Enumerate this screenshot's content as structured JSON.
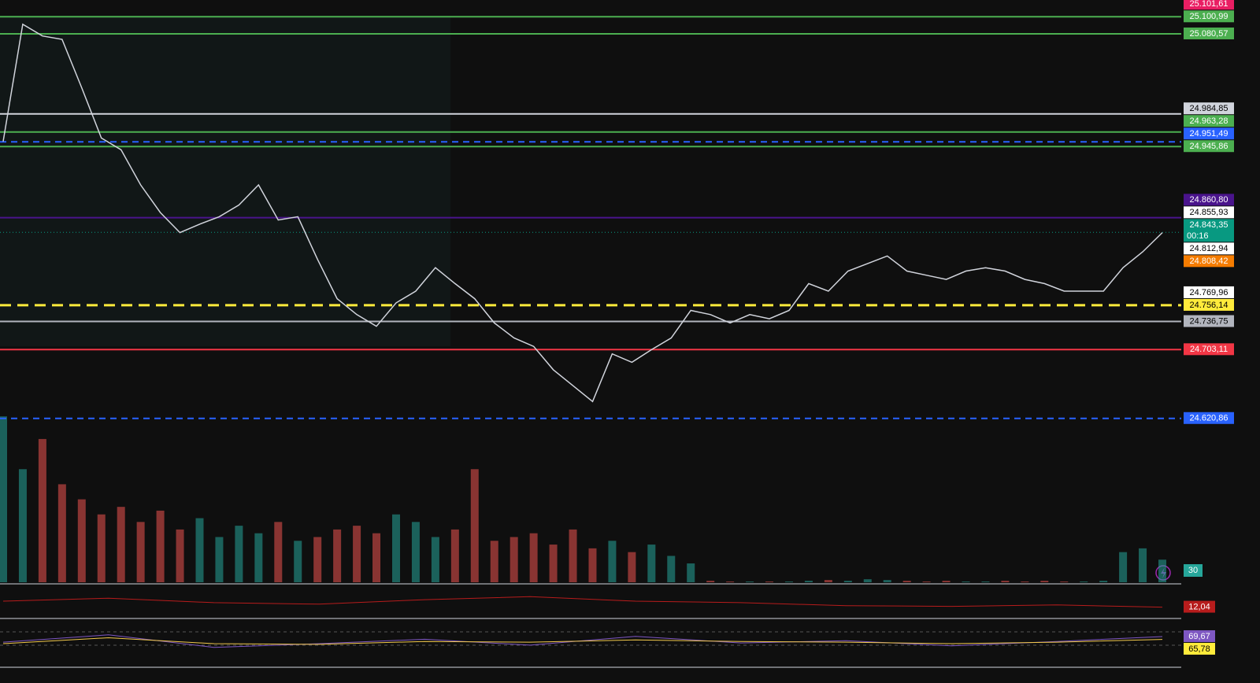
{
  "chart_data": {
    "type": "line",
    "ylim": [
      24425,
      25121
    ],
    "x": [
      0,
      1,
      2,
      3,
      4,
      5,
      6,
      7,
      8,
      9,
      10,
      11,
      12,
      13,
      14,
      15,
      16,
      17,
      18,
      19,
      20,
      21,
      22,
      23,
      24,
      25,
      26,
      27,
      28,
      29,
      30,
      31,
      32,
      33,
      34,
      35,
      36,
      37,
      38,
      39,
      40,
      41,
      42,
      43,
      44,
      45,
      46,
      47,
      48,
      49,
      50,
      51,
      52,
      53,
      54,
      55,
      56,
      57,
      58,
      59
    ],
    "xlim": [
      0,
      59
    ],
    "series": [
      {
        "color": "#d1d4dc",
        "values": [
          24952,
          25092,
          25078,
          25074,
          25016,
          24956,
          24942,
          24900,
          24867,
          24843,
          24853,
          24862,
          24876,
          24900,
          24858,
          24862,
          24811,
          24764,
          24745,
          24731,
          24759,
          24773,
          24801,
          24782,
          24764,
          24735,
          24717,
          24707,
          24679,
          24660,
          24641,
          24698,
          24688,
          24703,
          24717,
          24750,
          24745,
          24735,
          24745,
          24740,
          24750,
          24782,
          24773,
          24797,
          24806,
          24815,
          24797,
          24792,
          24787,
          24797,
          24801,
          24797,
          24787,
          24782,
          24773,
          24773,
          24773,
          24801,
          24820,
          24843
        ]
      }
    ],
    "levels": [
      {
        "value": 25101.61,
        "label": "25.101,61",
        "color": "#e91e63",
        "text_color": "#ffffff",
        "line": "none"
      },
      {
        "value": 25100.99,
        "label": "25.100,99",
        "color": "#4caf50",
        "text_color": "#ffffff",
        "line": "solid"
      },
      {
        "value": 25080.57,
        "label": "25.080,57",
        "color": "#4caf50",
        "text_color": "#ffffff",
        "line": "solid"
      },
      {
        "value": 24984.85,
        "label": "24.984,85",
        "color": "#d1d4dc",
        "text_color": "#000000",
        "line": "solid"
      },
      {
        "value": 24963.28,
        "label": "24.963,28",
        "color": "#4caf50",
        "text_color": "#ffffff",
        "line": "solid"
      },
      {
        "value": 24951.49,
        "label": "24.951,49",
        "color": "#2962ff",
        "text_color": "#ffffff",
        "line": "dashed"
      },
      {
        "value": 24945.86,
        "label": "24.945,86",
        "color": "#4caf50",
        "text_color": "#ffffff",
        "line": "solid"
      },
      {
        "value": 24860.8,
        "label": "24.860,80",
        "color": "#4a148c",
        "text_color": "#ffffff",
        "line": "solid"
      },
      {
        "value": 24855.93,
        "label": "24.855,93",
        "color": "#ffffff",
        "text_color": "#000000",
        "line": "none"
      },
      {
        "value": 24843.35,
        "label": "24.843,35",
        "color": "#089981",
        "text_color": "#ffffff",
        "line": "dotted",
        "countdown": "00:16"
      },
      {
        "value": 24812.94,
        "label": "24.812,94",
        "color": "#ffffff",
        "text_color": "#000000",
        "line": "none"
      },
      {
        "value": 24808.42,
        "label": "24.808,42",
        "color": "#f57c00",
        "text_color": "#ffffff",
        "line": "none"
      },
      {
        "value": 24769.96,
        "label": "24.769,96",
        "color": "#ffffff",
        "text_color": "#000000",
        "line": "none"
      },
      {
        "value": 24756.14,
        "label": "24.756,14",
        "color": "#ffeb3b",
        "text_color": "#000000",
        "line": "dashed"
      },
      {
        "value": 24736.75,
        "label": "24.736,75",
        "color": "#b2b5be",
        "text_color": "#000000",
        "line": "solid"
      },
      {
        "value": 24703.11,
        "label": "24.703,11",
        "color": "#f23645",
        "text_color": "#ffffff",
        "line": "solid"
      },
      {
        "value": 24620.86,
        "label": "24.620,86",
        "color": "#2962ff",
        "text_color": "#ffffff",
        "line": "dashed"
      }
    ],
    "volume": {
      "ylim": [
        0,
        240
      ],
      "label": "30",
      "color": "#26a69a",
      "values": [
        220,
        150,
        190,
        130,
        110,
        90,
        100,
        80,
        95,
        70,
        85,
        60,
        75,
        65,
        80,
        55,
        60,
        70,
        75,
        65,
        90,
        80,
        60,
        70,
        150,
        55,
        60,
        65,
        50,
        70,
        45,
        55,
        40,
        50,
        35,
        25,
        2,
        1,
        1,
        1,
        1,
        2,
        3,
        2,
        4,
        3,
        2,
        1,
        2,
        1,
        1,
        2,
        1,
        2,
        1,
        1,
        2,
        40,
        45,
        30
      ]
    },
    "panes": [
      {
        "ylim": [
          0,
          40
        ],
        "series": [
          {
            "color": "#b71c1c",
            "values": [
              20,
              24,
              18,
              16,
              22,
              26,
              20,
              18,
              14,
              13,
              15,
              12.04
            ]
          }
        ],
        "labels": [
          {
            "value": 12.04,
            "label": "12,04",
            "color": "#b71c1c"
          }
        ]
      },
      {
        "ylim": [
          30,
          90
        ],
        "series": [
          {
            "color": "#7e57c2",
            "values": [
              62,
              72,
              55,
              60,
              66,
              58,
              70,
              61,
              64,
              57,
              63,
              69.67
            ]
          },
          {
            "color": "#f2c94c",
            "values": [
              60,
              68,
              60,
              59,
              63,
              62,
              65,
              63,
              62,
              60,
              62,
              65.78
            ]
          }
        ],
        "labels": [
          {
            "value": 69.67,
            "label": "69,67",
            "color": "#7e57c2"
          },
          {
            "value": 65.78,
            "label": "65,78",
            "color": "#ffeb3b"
          }
        ]
      }
    ]
  }
}
